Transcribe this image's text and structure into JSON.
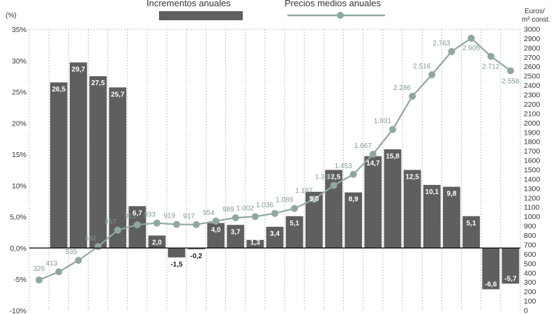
{
  "chart_data": {
    "type": "bar",
    "legend": {
      "bars_label": "Incrementos anuales",
      "line_label": "Precios medios anuales",
      "placement": "top-center"
    },
    "left_axis": {
      "unit_label": "(%)",
      "ylim": [
        -10,
        35
      ],
      "ticks": [
        -10,
        -5,
        0,
        5,
        10,
        15,
        20,
        25,
        30,
        35
      ],
      "tick_labels": [
        "-10%",
        "-5%",
        "0,0%",
        "5,0%",
        "10%",
        "15%",
        "20%",
        "25%",
        "30%",
        "35%"
      ]
    },
    "right_axis": {
      "unit_label_line1": "Euros/",
      "unit_label_line2": "m² const.",
      "ylim": [
        0,
        3000
      ],
      "ticks": [
        0,
        100,
        200,
        300,
        400,
        500,
        600,
        700,
        800,
        900,
        1000,
        1100,
        1200,
        1300,
        1400,
        1500,
        1600,
        1700,
        1800,
        1900,
        2000,
        2100,
        2200,
        2300,
        2400,
        2500,
        2600,
        2700,
        2800,
        2900,
        3000
      ],
      "tick_labels": [
        "0",
        "100",
        "200",
        "300",
        "400",
        "500",
        "600",
        "700",
        "800",
        "900",
        "1000",
        "1100",
        "1200",
        "1300",
        "1400",
        "1500",
        "1600",
        "1700",
        "1800",
        "1900",
        "2000",
        "2100",
        "2200",
        "2300",
        "2400",
        "2500",
        "2600",
        "2700",
        "2800",
        "2900",
        "3000"
      ]
    },
    "grid": "vertical dotted",
    "series": [
      {
        "name": "Incrementos anuales",
        "kind": "bar",
        "values": [
          null,
          26.5,
          29.7,
          27.5,
          25.7,
          6.7,
          2.0,
          -1.5,
          -0.2,
          4.0,
          3.7,
          1.3,
          3.4,
          5.1,
          9.0,
          12.5,
          8.9,
          14.7,
          15.8,
          12.5,
          10.1,
          9.8,
          5.1,
          -6.6,
          -5.7
        ],
        "labels": [
          "",
          "26,5",
          "29,7",
          "27,5",
          "25,7",
          "6,7",
          "2,0",
          "-1,5",
          "-0,2",
          "4,0",
          "3,7",
          "1,3",
          "3,4",
          "5,1",
          "9,0",
          "12,5",
          "8,9",
          "14,7",
          "15,8",
          "12,5",
          "10,1",
          "9,8",
          "5,1",
          "-6,6",
          "-5,7"
        ]
      },
      {
        "name": "Precios medios anuales",
        "kind": "line",
        "values": [
          326,
          413,
          535,
          682,
          857,
          915,
          933,
          919,
          917,
          954,
          989,
          1002,
          1036,
          1089,
          1187,
          1335,
          1453,
          1667,
          1931,
          2286,
          2516,
          2763,
          2905,
          2712,
          2558
        ],
        "labels": [
          "326",
          "413",
          "535",
          "682",
          "857",
          "915",
          "933",
          "919",
          "917",
          "954",
          "989",
          "1.002",
          "1.036",
          "1.089",
          "1.187",
          "1.335",
          "1.453",
          "1.667",
          "1.931",
          "2.286",
          "2.516",
          "2.763",
          "2.905",
          "2.712",
          "2.558"
        ]
      }
    ],
    "colors": {
      "bar": "#5f5f5f",
      "line": "#8ea99b",
      "line_label": "#7f9a8c",
      "axis_text": "#333333",
      "grid": "#9a9a9a"
    }
  }
}
